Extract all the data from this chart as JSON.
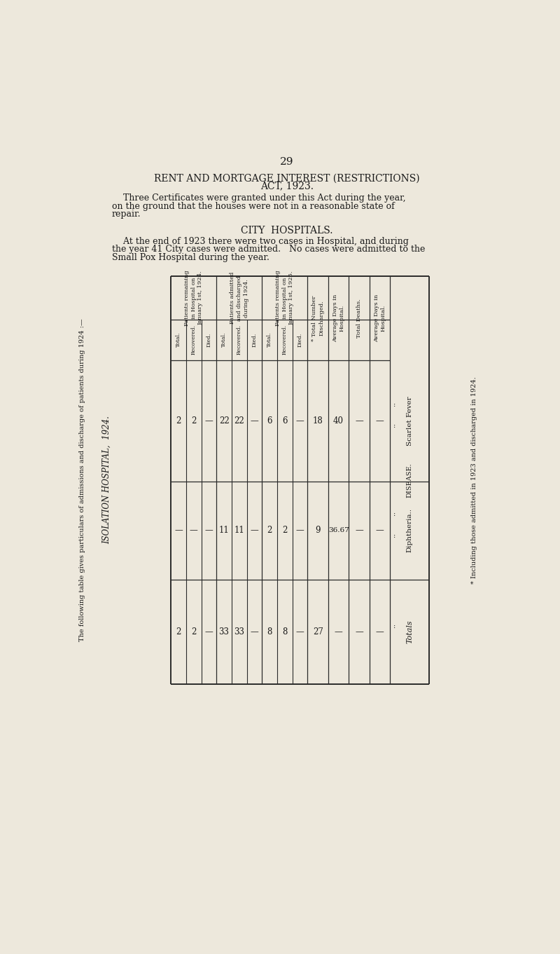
{
  "bg_color": "#ede8dc",
  "page_number": "29",
  "title1": "RENT AND MORTGAGE INTEREST (RESTRICTIONS)",
  "title2": "ACT, 1923.",
  "para1_lines": [
    "    Three Certificates were granted under this Act during the year,",
    "on the ground that the houses were not in a reasonable state of",
    "repair."
  ],
  "title3": "CITY  HOSPITALS.",
  "para2_lines": [
    "    At the end of 1923 there were two cases in Hospital, and during",
    "the year 41 City cases were admitted.   No cases were admitted to the",
    "Small Pox Hospital during the year."
  ],
  "left_note1": "The following table gives particulars of admissions and discharge of patients during 1924 :—",
  "left_note2": "ISOLATION HOSPITAL,  1924.",
  "right_note": "* Including those admitted in 1923 and discharged in 1924.",
  "table": {
    "col_headers_top": [
      "Patients remaining\nin Hospital on\nJanuary 1st, 1924.",
      "Patients admitted\nand discharged\nduring 1924.",
      "Patients remaining\nin Hospital on\nJanuary 1st, 1925.",
      "* Total Number\nDischarged.",
      "Average Days in\nHospital.",
      "Total Deaths.",
      "Average Days in\nHospital."
    ],
    "sub_headers": [
      [
        "Total.",
        "Recovered.",
        "Died."
      ],
      [
        "Total.",
        "Recovered.",
        "Died."
      ],
      [
        "Total.",
        "Recovered.",
        "Died."
      ],
      [],
      [],
      [],
      []
    ],
    "disease_col_label": "DISEASE.",
    "diseases": [
      "Scarlet Fever",
      "Diphtheria..",
      "Totals"
    ],
    "data": [
      [
        "2",
        "2",
        "|",
        "22",
        "22",
        "|",
        "6",
        "6",
        "|",
        "18",
        "40",
        "|",
        "|"
      ],
      [
        "|",
        "|",
        "|",
        "11",
        "11",
        "|",
        "2",
        "2",
        "|",
        "9",
        "36.67",
        "|",
        "|"
      ],
      [
        "2",
        "2",
        "|",
        "33",
        "33",
        "|",
        "8",
        "8",
        "|",
        "27",
        "|",
        "|",
        "|"
      ]
    ],
    "dots_SF": ": :",
    "dots_Di": ": :"
  }
}
